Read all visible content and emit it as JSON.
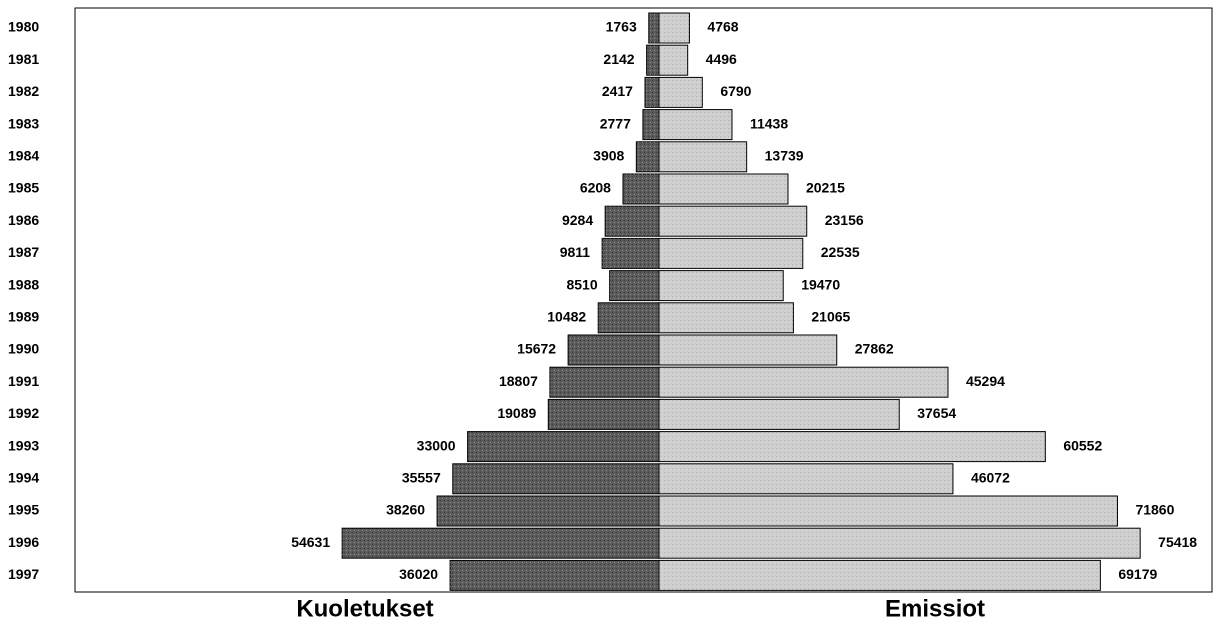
{
  "chart_data": {
    "type": "butterfly",
    "categories": [
      "1980",
      "1981",
      "1982",
      "1983",
      "1984",
      "1985",
      "1986",
      "1987",
      "1988",
      "1989",
      "1990",
      "1991",
      "1992",
      "1993",
      "1994",
      "1995",
      "1996",
      "1997"
    ],
    "series": [
      {
        "name": "Kuoletukset",
        "color": "#5a5a5a",
        "values": [
          1763,
          2142,
          2417,
          2777,
          3908,
          6208,
          9284,
          9811,
          8510,
          10482,
          15672,
          18807,
          19089,
          33000,
          35557,
          38260,
          54631,
          36020
        ]
      },
      {
        "name": "Emissiot",
        "color": "#cfcfcf",
        "values": [
          4768,
          4496,
          6790,
          11438,
          13739,
          20215,
          23156,
          22535,
          19470,
          21065,
          27862,
          45294,
          37654,
          60552,
          46072,
          71860,
          75418,
          69179
        ]
      }
    ]
  }
}
